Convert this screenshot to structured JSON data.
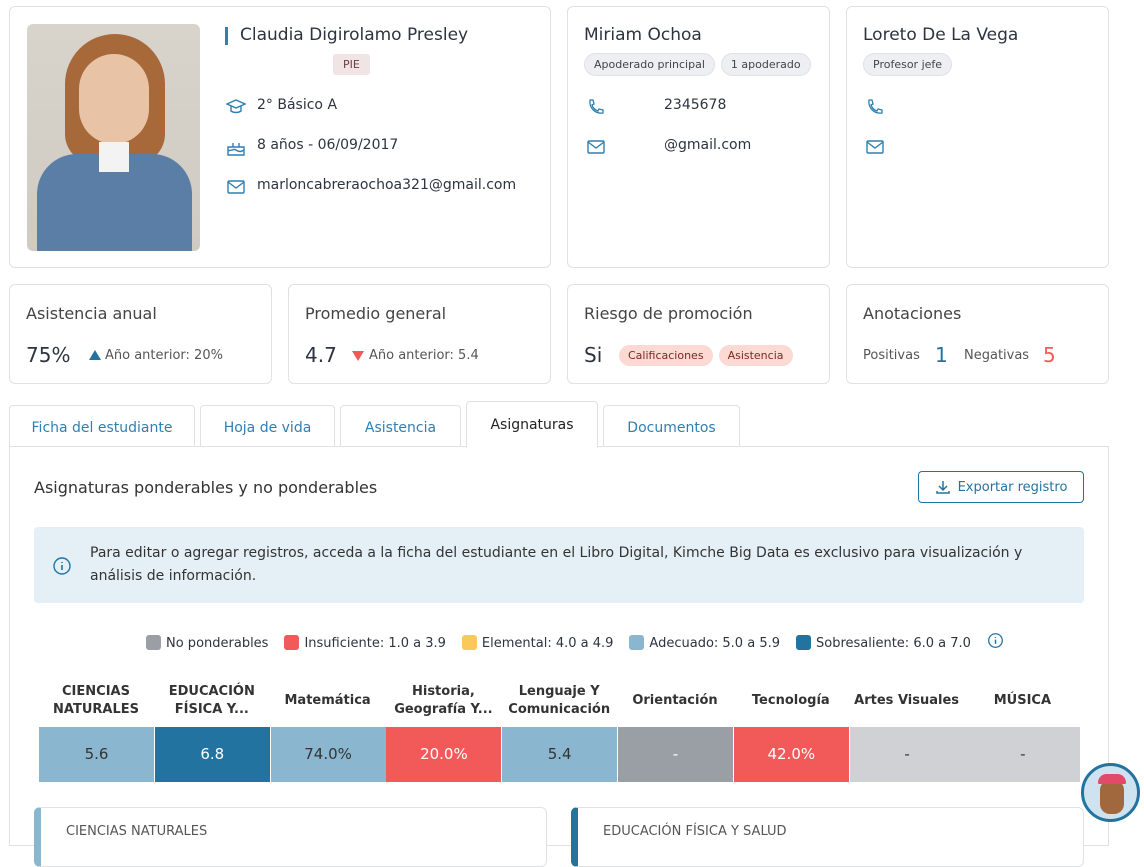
{
  "student": {
    "name": "Claudia Digirolamo Presley",
    "badge": "PIE",
    "course": "2° Básico A",
    "age": "8 años - 06/09/2017",
    "email": "marloncabreraochoa321@gmail.com"
  },
  "guardian": {
    "name": "Miriam Ochoa",
    "chips": [
      "Apoderado principal",
      "1 apoderado"
    ],
    "phone": "2345678",
    "email": "@gmail.com"
  },
  "teacher": {
    "name": "Loreto De La Vega",
    "chip": "Profesor jefe"
  },
  "stats": {
    "attendance": {
      "title": "Asistencia anual",
      "value": "75%",
      "prev": "Año anterior: 20%"
    },
    "average": {
      "title": "Promedio general",
      "value": "4.7",
      "prev": "Año anterior: 5.4"
    },
    "risk": {
      "title": "Riesgo de promoción",
      "value": "Si",
      "chips": [
        "Calificaciones",
        "Asistencia"
      ]
    },
    "notes": {
      "title": "Anotaciones",
      "pos_label": "Positivas",
      "pos": "1",
      "neg_label": "Negativas",
      "neg": "5"
    }
  },
  "tabs": [
    "Ficha del estudiante",
    "Hoja de vida",
    "Asistencia",
    "Asignaturas",
    "Documentos"
  ],
  "section": {
    "title": "Asignaturas ponderables y no ponderables",
    "export": "Exportar registro",
    "info": "Para editar o agregar registros, acceda a la ficha del estudiante en el Libro Digital, Kimche Big Data es exclusivo para visualización y análisis de información."
  },
  "legend": [
    {
      "label": "No ponderables",
      "color": "#9a9ea5"
    },
    {
      "label": "Insuficiente: 1.0 a 3.9",
      "color": "#f25a5a"
    },
    {
      "label": "Elemental: 4.0 a 4.9",
      "color": "#fbc85a"
    },
    {
      "label": "Adecuado: 5.0 a 5.9",
      "color": "#8ab6d0"
    },
    {
      "label": "Sobresaliente: 6.0 a 7.0",
      "color": "#2373a0"
    }
  ],
  "subjects": [
    {
      "name": "CIENCIAS NATURALES",
      "value": "5.6",
      "color": "#8ab6d0",
      "fg": "#333"
    },
    {
      "name": "EDUCACIÓN FÍSICA Y...",
      "value": "6.8",
      "color": "#2373a0",
      "fg": "#fff"
    },
    {
      "name": "Matemática",
      "value": "74.0%",
      "color": "#8ab6d0",
      "fg": "#333"
    },
    {
      "name": "Historia, Geografía Y...",
      "value": "20.0%",
      "color": "#f25a5a",
      "fg": "#fff"
    },
    {
      "name": "Lenguaje Y Comunicación",
      "value": "5.4",
      "color": "#8ab6d0",
      "fg": "#333"
    },
    {
      "name": "Orientación",
      "value": "-",
      "color": "#9a9ea5",
      "fg": "#fff"
    },
    {
      "name": "Tecnología",
      "value": "42.0%",
      "color": "#f25a5a",
      "fg": "#fff"
    },
    {
      "name": "Artes Visuales",
      "value": "-",
      "color": "#d0d1d5",
      "fg": "#333"
    },
    {
      "name": "MÚSICA",
      "value": "-",
      "color": "#d0d1d5",
      "fg": "#333"
    }
  ],
  "bottom_cards": [
    "CIENCIAS NATURALES",
    "EDUCACIÓN FÍSICA Y SALUD"
  ]
}
